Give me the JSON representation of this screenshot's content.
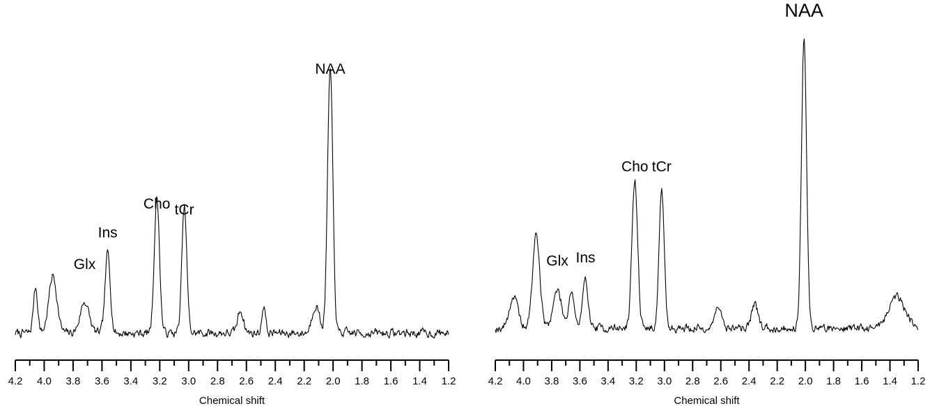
{
  "chart_data": [
    {
      "type": "line",
      "xlabel": "Chemical shift",
      "xlim": [
        4.2,
        1.2
      ],
      "x_reversed": true,
      "ticks": [
        "4.2",
        "4.0",
        "3.8",
        "3.6",
        "3.4",
        "3.2",
        "3.0",
        "2.8",
        "2.6",
        "2.4",
        "2.2",
        "2.0",
        "1.8",
        "1.6",
        "1.4",
        "1.2"
      ],
      "annotations": [
        {
          "label": "Glx",
          "x": 3.72,
          "y": 0.25
        },
        {
          "label": "Ins",
          "x": 3.56,
          "y": 0.36
        },
        {
          "label": "Cho",
          "x": 3.22,
          "y": 0.46
        },
        {
          "label": "tCr",
          "x": 3.03,
          "y": 0.44
        },
        {
          "label": "NAA",
          "x": 2.02,
          "y": 0.91
        }
      ],
      "peaks": [
        {
          "name": "Glx",
          "x": 3.72,
          "height": 0.11,
          "width": 0.03
        },
        {
          "name": "Ins",
          "x": 3.56,
          "height": 0.28,
          "width": 0.018
        },
        {
          "name": "Cho",
          "x": 3.22,
          "height": 0.47,
          "width": 0.018
        },
        {
          "name": "tCr",
          "x": 3.03,
          "height": 0.44,
          "width": 0.017
        },
        {
          "name": "NAA",
          "x": 2.02,
          "height": 0.92,
          "width": 0.018
        },
        {
          "name": "",
          "x": 4.06,
          "height": 0.16,
          "width": 0.015
        },
        {
          "name": "",
          "x": 3.94,
          "height": 0.2,
          "width": 0.028
        },
        {
          "name": "",
          "x": 2.64,
          "height": 0.08,
          "width": 0.02
        },
        {
          "name": "",
          "x": 2.48,
          "height": 0.1,
          "width": 0.012
        },
        {
          "name": "",
          "x": 2.12,
          "height": 0.1,
          "width": 0.025
        }
      ],
      "baseline": 0.07,
      "noise": 0.025,
      "seed": 7
    },
    {
      "type": "line",
      "xlabel": "Chemical shift",
      "xlim": [
        4.2,
        1.2
      ],
      "x_reversed": true,
      "ticks": [
        "4.2",
        "4.0",
        "3.8",
        "3.6",
        "3.4",
        "3.2",
        "3.0",
        "2.8",
        "2.6",
        "2.4",
        "2.2",
        "2.0",
        "1.8",
        "1.6",
        "1.4",
        "1.2"
      ],
      "annotations": [
        {
          "label": "Glx",
          "x": 3.76,
          "y": 0.24
        },
        {
          "label": "Ins",
          "x": 3.56,
          "y": 0.25
        },
        {
          "label": "Cho",
          "x": 3.21,
          "y": 0.54
        },
        {
          "label": "tCr",
          "x": 3.02,
          "y": 0.54
        },
        {
          "label": "NAA",
          "x": 2.01,
          "y": 1.02
        }
      ],
      "peaks": [
        {
          "name": "Glx",
          "x": 3.76,
          "height": 0.12,
          "width": 0.03
        },
        {
          "name": "Ins",
          "x": 3.56,
          "height": 0.15,
          "width": 0.02
        },
        {
          "name": "Cho",
          "x": 3.21,
          "height": 0.47,
          "width": 0.02
        },
        {
          "name": "tCr",
          "x": 3.02,
          "height": 0.44,
          "width": 0.018
        },
        {
          "name": "NAA",
          "x": 2.01,
          "height": 0.93,
          "width": 0.018
        },
        {
          "name": "",
          "x": 3.91,
          "height": 0.3,
          "width": 0.025
        },
        {
          "name": "",
          "x": 4.07,
          "height": 0.1,
          "width": 0.03
        },
        {
          "name": "",
          "x": 3.66,
          "height": 0.12,
          "width": 0.02
        },
        {
          "name": "",
          "x": 2.62,
          "height": 0.08,
          "width": 0.02
        },
        {
          "name": "",
          "x": 2.36,
          "height": 0.07,
          "width": 0.025
        },
        {
          "name": "",
          "x": 1.35,
          "height": 0.1,
          "width": 0.06
        }
      ],
      "baseline": 0.08,
      "noise": 0.022,
      "seed": 19
    }
  ]
}
